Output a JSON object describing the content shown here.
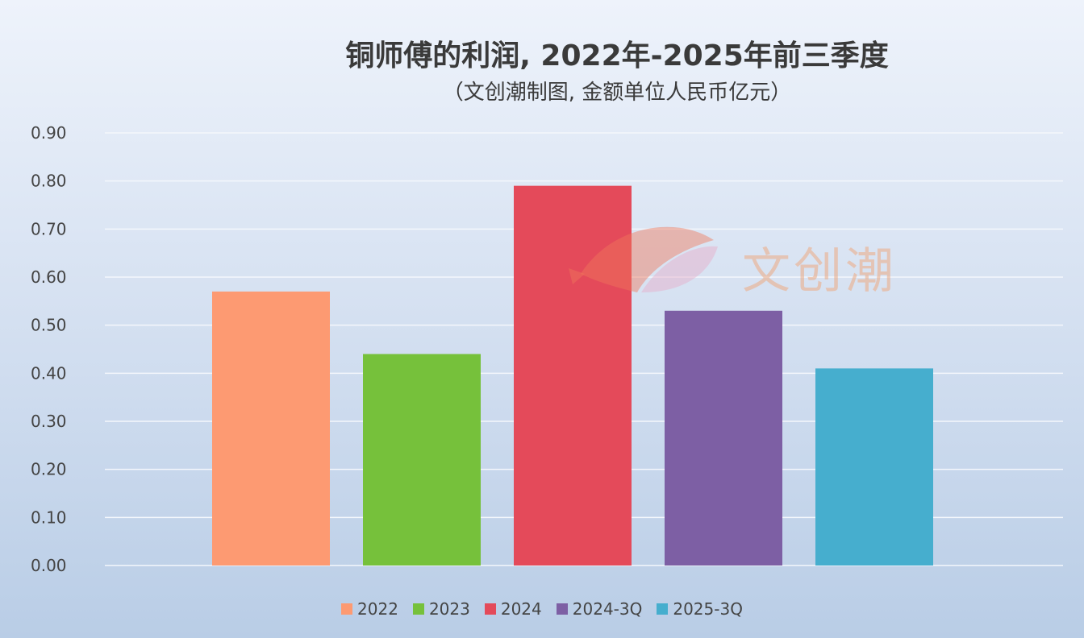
{
  "chart_data": {
    "type": "bar",
    "title": "铜师傅的利润, 2022年-2025年前三季度",
    "subtitle": "（文创潮制图, 金额单位人民币亿元）",
    "categories": [
      "2022",
      "2023",
      "2024",
      "2024-3Q",
      "2025-3Q"
    ],
    "values": [
      0.57,
      0.44,
      0.79,
      0.53,
      0.41
    ],
    "colors": [
      "#fd9a72",
      "#76c13b",
      "#e44a5a",
      "#7d5fa4",
      "#46aece"
    ],
    "ylim": [
      0,
      0.9
    ],
    "yticks": [
      "0.00",
      "0.10",
      "0.20",
      "0.30",
      "0.40",
      "0.50",
      "0.60",
      "0.70",
      "0.80",
      "0.90"
    ],
    "grid": true,
    "legend": "bottom"
  },
  "watermark": {
    "text": "文创潮",
    "icon": "fish-logo-icon"
  }
}
